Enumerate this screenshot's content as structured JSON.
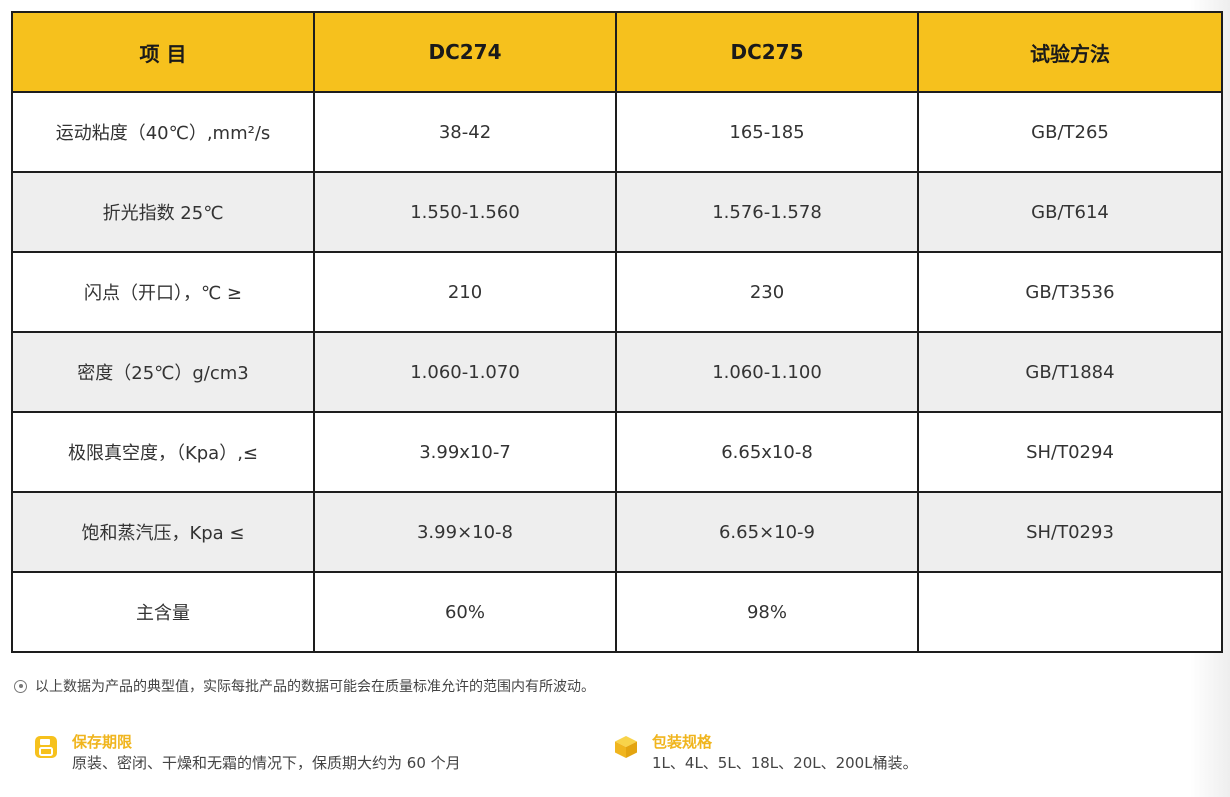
{
  "table": {
    "headers": [
      "项 目",
      "DC274",
      "DC275",
      "试验方法"
    ],
    "rows": [
      [
        "运动粘度（40℃）,mm²/s",
        "38-42",
        "165-185",
        "GB/T265"
      ],
      [
        "折光指数 25℃",
        "1.550-1.560",
        "1.576-1.578",
        "GB/T614"
      ],
      [
        "闪点（开口），℃ ≥",
        "210",
        "230",
        "GB/T3536"
      ],
      [
        "密度（25℃）g/cm3",
        "1.060-1.070",
        "1.060-1.100",
        "GB/T1884"
      ],
      [
        "极限真空度，（Kpa）,≤",
        "3.99x10-7",
        "6.65x10-8",
        "SH/T0294"
      ],
      [
        "饱和蒸汽压，Kpa ≤",
        "3.99×10-8",
        "6.65×10-9",
        "SH/T0293"
      ],
      [
        "主含量",
        "60%",
        "98%",
        ""
      ]
    ]
  },
  "note": "以上数据为产品的典型值，实际每批产品的数据可能会在质量标准允许的范围内有所波动。",
  "storage": {
    "title": "保存期限",
    "text": "原装、密闭、干燥和无霜的情况下，保质期大约为 60 个月",
    "icon": "save-icon"
  },
  "packaging": {
    "title": "包装规格",
    "text": "1L、4L、5L、18L、20L、200L桶装。",
    "icon": "box-icon"
  },
  "colors": {
    "header_bg": "#f6c11d",
    "accent": "#f0b51e",
    "stripe": "#eeeeee"
  }
}
